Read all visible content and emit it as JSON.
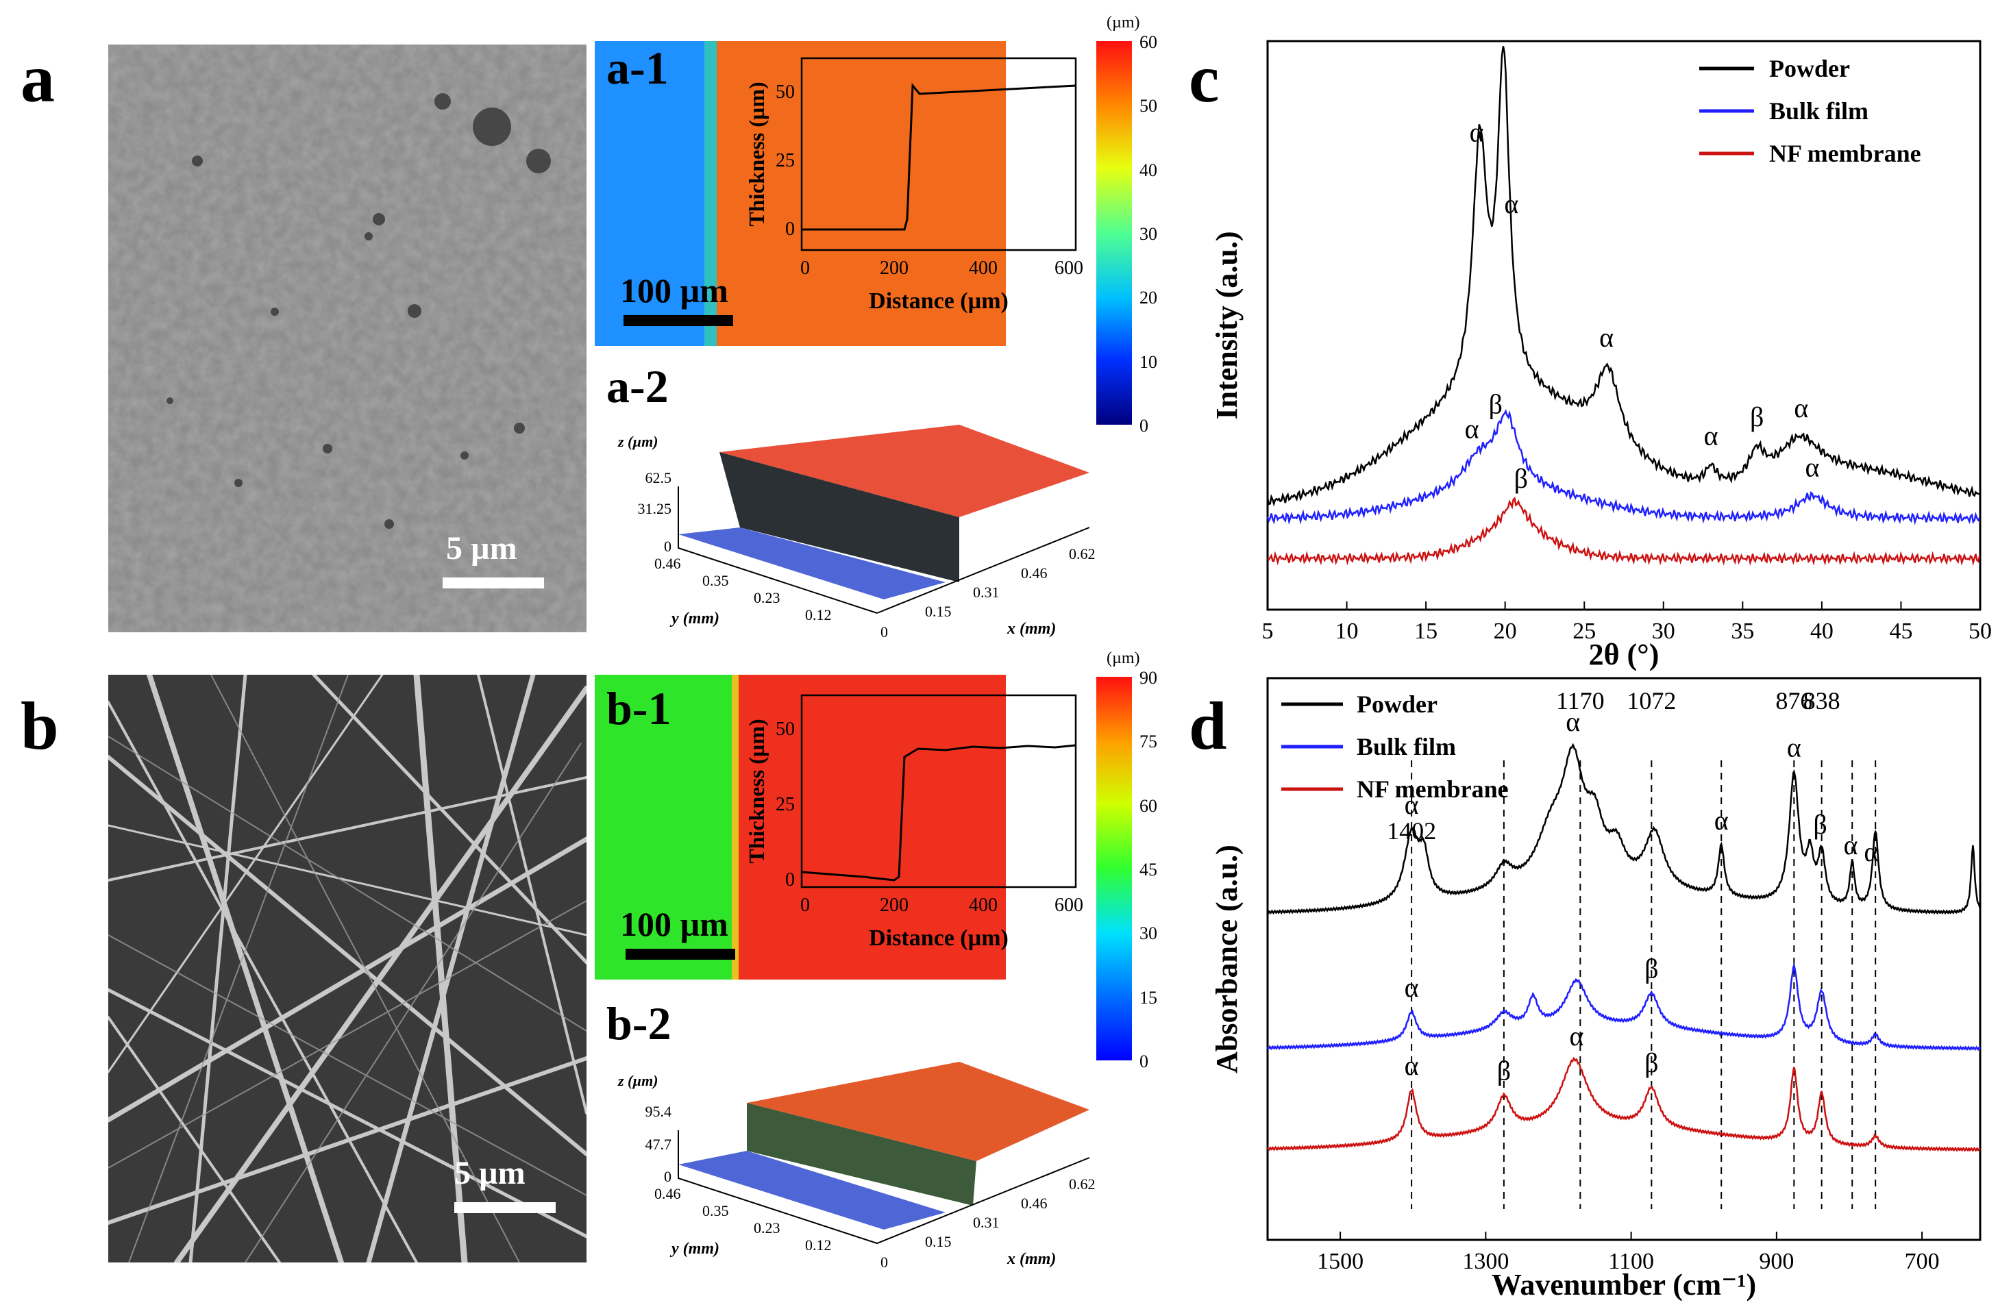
{
  "panels": {
    "a": {
      "label": "a",
      "scale": "5 µm"
    },
    "a1": {
      "label": "a-1",
      "scale": "100 µm",
      "unit": "(µm)",
      "colorbar_ticks": [
        "60",
        "50",
        "40",
        "30",
        "20",
        "10",
        "0"
      ],
      "inset": {
        "ylabel": "Thickness (µm)",
        "xlabel": "Distance (µm)",
        "xticks": [
          "0",
          "200",
          "400",
          "600"
        ],
        "yticks": [
          "0",
          "25",
          "50"
        ]
      }
    },
    "a2": {
      "label": "a-2",
      "z_label": "z (µm)",
      "z_ticks": [
        "62.5",
        "31.25",
        "0"
      ],
      "y_label": "y (mm)",
      "y_ticks": [
        "0.46",
        "0.35",
        "0.23",
        "0.12"
      ],
      "x_label": "x (mm)",
      "x_ticks": [
        "0",
        "0.15",
        "0.31",
        "0.46",
        "0.62"
      ]
    },
    "b": {
      "label": "b",
      "scale": "5 µm"
    },
    "b1": {
      "label": "b-1",
      "scale": "100 µm",
      "unit": "(µm)",
      "colorbar_ticks": [
        "90",
        "75",
        "60",
        "45",
        "30",
        "15",
        "0"
      ],
      "inset": {
        "ylabel": "Thickness (µm)",
        "xlabel": "Distance (µm)",
        "xticks": [
          "0",
          "200",
          "400",
          "600"
        ],
        "yticks": [
          "0",
          "25",
          "50"
        ]
      }
    },
    "b2": {
      "label": "b-2",
      "z_label": "z (µm)",
      "z_ticks": [
        "95.4",
        "47.7",
        "0"
      ],
      "y_label": "y (mm)",
      "y_ticks": [
        "0.46",
        "0.35",
        "0.23",
        "0.12"
      ],
      "x_label": "x (mm)",
      "x_ticks": [
        "0",
        "0.15",
        "0.31",
        "0.46",
        "0.62"
      ]
    },
    "c": {
      "label": "c"
    },
    "d": {
      "label": "d"
    }
  },
  "chart_data": [
    {
      "id": "c",
      "type": "line",
      "title": "",
      "xlabel": "2θ (°)",
      "ylabel": "Intensity (a.u.)",
      "xlim": [
        5,
        50
      ],
      "xticks": [
        "5",
        "10",
        "15",
        "20",
        "25",
        "30",
        "35",
        "40",
        "45",
        "50"
      ],
      "legend": "top-right",
      "series": [
        {
          "name": "Powder",
          "color": "#000000",
          "baseline": 0.18,
          "peaks": [
            [
              18.4,
              0.43,
              0.55
            ],
            [
              19.9,
              0.56,
              0.45
            ],
            [
              26.5,
              0.13,
              0.9
            ],
            [
              33.0,
              0.03,
              0.4
            ],
            [
              35.9,
              0.05,
              0.6
            ],
            [
              38.6,
              0.07,
              1.6
            ]
          ],
          "hump": [
            [
              20,
              0.2,
              6
            ]
          ]
        },
        {
          "name": "Bulk film",
          "color": "#1f1fff",
          "baseline": 0.16,
          "peaks": [
            [
              18.3,
              0.05,
              1.2
            ],
            [
              20.1,
              0.12,
              0.9
            ],
            [
              39.4,
              0.04,
              1.2
            ]
          ],
          "hump": [
            [
              20,
              0.05,
              5
            ]
          ]
        },
        {
          "name": "NF membrane",
          "color": "#cc1111",
          "baseline": 0.09,
          "peaks": [
            [
              20.6,
              0.06,
              1.0
            ]
          ],
          "hump": [
            [
              20.5,
              0.04,
              2.5
            ]
          ]
        }
      ],
      "annotations": [
        {
          "text": "α",
          "x": 18.2,
          "series": "Powder"
        },
        {
          "text": "α",
          "x": 20.4,
          "series": "Powder"
        },
        {
          "text": "α",
          "x": 26.4,
          "series": "Powder"
        },
        {
          "text": "α",
          "x": 33.0,
          "series": "Powder"
        },
        {
          "text": "β",
          "x": 35.9,
          "series": "Powder"
        },
        {
          "text": "α",
          "x": 38.7,
          "series": "Powder"
        },
        {
          "text": "α",
          "x": 17.9,
          "series": "Bulk film"
        },
        {
          "text": "β",
          "x": 19.4,
          "series": "Bulk film"
        },
        {
          "text": "α",
          "x": 39.4,
          "series": "Bulk film"
        },
        {
          "text": "β",
          "x": 21.0,
          "series": "NF membrane"
        }
      ]
    },
    {
      "id": "d",
      "type": "line",
      "title": "",
      "xlabel": "Wavenumber (cm⁻¹)",
      "ylabel": "Absorbance (a.u.)",
      "xlim": [
        1600,
        620
      ],
      "xreversed": true,
      "xticks": [
        "1500",
        "1300",
        "1100",
        "900",
        "700"
      ],
      "legend": "top-left",
      "series": [
        {
          "name": "Powder",
          "color": "#000000",
          "baseline": 0.58
        },
        {
          "name": "Bulk film",
          "color": "#1f1fff",
          "baseline": 0.34
        },
        {
          "name": "NF membrane",
          "color": "#cc1111",
          "baseline": 0.16
        }
      ],
      "dashed_lines": [
        1402,
        1275,
        1170,
        1072,
        976,
        876,
        838,
        796,
        764
      ],
      "wavenumber_labels": [
        {
          "text": "1402",
          "x": 1402
        },
        {
          "text": "1170",
          "x": 1170
        },
        {
          "text": "1072",
          "x": 1072
        },
        {
          "text": "876",
          "x": 876
        },
        {
          "text": "838",
          "x": 838
        }
      ],
      "annotations": [
        {
          "text": "α",
          "x": 1402,
          "series": "Powder"
        },
        {
          "text": "α",
          "x": 1180,
          "series": "Powder"
        },
        {
          "text": "α",
          "x": 976,
          "series": "Powder"
        },
        {
          "text": "α",
          "x": 876,
          "series": "Powder"
        },
        {
          "text": "β",
          "x": 840,
          "series": "Powder"
        },
        {
          "text": "α",
          "x": 798,
          "series": "Powder"
        },
        {
          "text": "α",
          "x": 770,
          "series": "Powder"
        },
        {
          "text": "α",
          "x": 1402,
          "series": "Bulk film"
        },
        {
          "text": "β",
          "x": 1072,
          "series": "Bulk film"
        },
        {
          "text": "α",
          "x": 1402,
          "series": "NF membrane"
        },
        {
          "text": "β",
          "x": 1275,
          "series": "NF membrane"
        },
        {
          "text": "α",
          "x": 1175,
          "series": "NF membrane"
        },
        {
          "text": "β",
          "x": 1072,
          "series": "NF membrane"
        }
      ]
    }
  ]
}
